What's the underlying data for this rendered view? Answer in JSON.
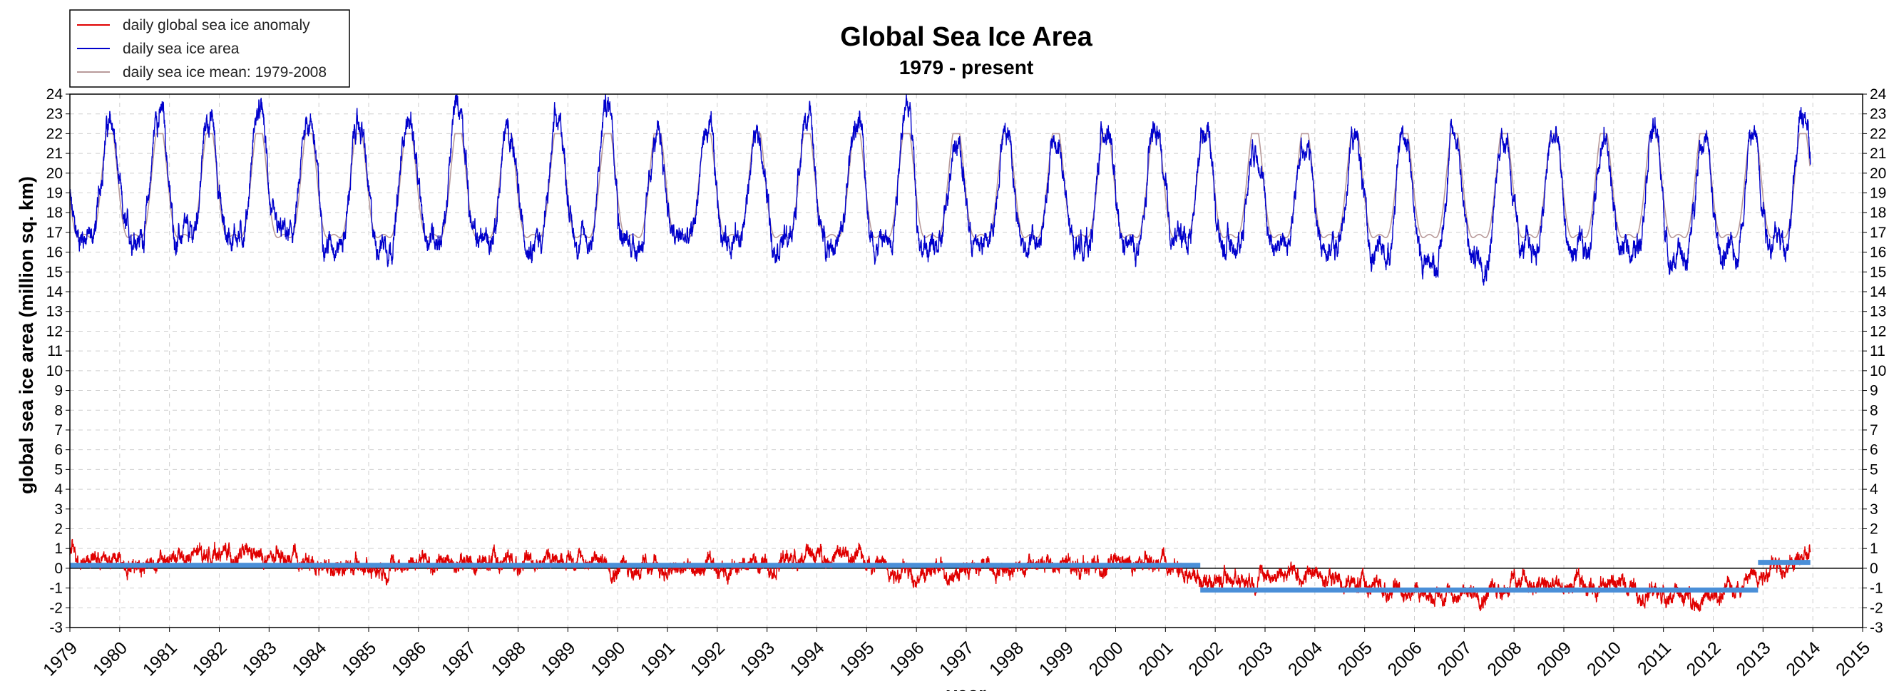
{
  "chart_data": {
    "type": "line",
    "title": "Global Sea Ice Area",
    "subtitle": "1979 - present",
    "ylabel": "global sea ice area (million sq. km)",
    "xlabel": "year",
    "xlim": [
      1979,
      2015
    ],
    "ylim": [
      -3,
      24
    ],
    "x_ticks": [
      1979,
      1980,
      1981,
      1982,
      1983,
      1984,
      1985,
      1986,
      1987,
      1988,
      1989,
      1990,
      1991,
      1992,
      1993,
      1994,
      1995,
      1996,
      1997,
      1998,
      1999,
      2000,
      2001,
      2002,
      2003,
      2004,
      2005,
      2006,
      2007,
      2008,
      2009,
      2010,
      2011,
      2012,
      2013,
      2014,
      2015
    ],
    "y_ticks": [
      -3,
      -2,
      -1,
      0,
      1,
      2,
      3,
      4,
      5,
      6,
      7,
      8,
      9,
      10,
      11,
      12,
      13,
      14,
      15,
      16,
      17,
      18,
      19,
      20,
      21,
      22,
      23,
      24
    ],
    "grid": true,
    "legend_position": "top-left",
    "legend": [
      {
        "label": "daily global sea ice anomaly",
        "color": "#e00000"
      },
      {
        "label": "daily sea ice area",
        "color": "#0000cc"
      },
      {
        "label": "daily sea ice mean: 1979-2008",
        "color": "#b89a9a"
      }
    ],
    "series": [
      {
        "name": "daily sea ice area",
        "color": "#0000cc",
        "min_annual": [
          15.9,
          15.8,
          15.7,
          15.9,
          15.8,
          15.6,
          15.5,
          15.8,
          15.7,
          15.8,
          15.5,
          15.6,
          15.7,
          15.9,
          15.6,
          15.6,
          15.4,
          15.2,
          15.4,
          15.6,
          15.4,
          15.2,
          15.8,
          15.4,
          15.6,
          15.3,
          14.9,
          14.5,
          14.7,
          15.2,
          15.0,
          15.1,
          14.6,
          14.9,
          15.6
        ],
        "max_annual": [
          22.3,
          23.0,
          22.6,
          22.9,
          22.7,
          22.3,
          22.6,
          23.3,
          22.0,
          22.3,
          23.4,
          21.5,
          22.0,
          21.7,
          22.7,
          22.4,
          23.1,
          21.7,
          22.2,
          21.5,
          22.3,
          22.0,
          22.3,
          21.4,
          21.5,
          21.7,
          21.9,
          21.9,
          21.9,
          21.7,
          21.6,
          22.1,
          21.8,
          21.8,
          22.6
        ]
      },
      {
        "name": "daily sea ice mean: 1979-2008",
        "color": "#b89a9a",
        "min": 15.9,
        "max": 22.0
      },
      {
        "name": "daily global sea ice anomaly",
        "color": "#e00000",
        "annual_mean": [
          0.8,
          0.3,
          0.4,
          0.8,
          0.4,
          0.2,
          0.1,
          0.3,
          0.3,
          0.3,
          0.6,
          0.2,
          -0.2,
          0.0,
          0.3,
          0.7,
          0.5,
          -0.3,
          0.0,
          0.2,
          0.1,
          0.1,
          0.1,
          -0.6,
          -0.3,
          -0.3,
          -0.9,
          -1.2,
          -1.3,
          -0.8,
          -1.0,
          -0.7,
          -1.3,
          -1.6,
          0.0,
          0.5
        ]
      }
    ],
    "regimes": [
      {
        "x": [
          1979.0,
          2001.7
        ],
        "y": 0.15,
        "color": "#4a8fd8"
      },
      {
        "x": [
          2001.7,
          2012.9
        ],
        "y": -1.1,
        "color": "#4a8fd8"
      },
      {
        "x": [
          2012.9,
          2013.95
        ],
        "y": 0.3,
        "color": "#4a8fd8"
      }
    ],
    "x_end": 2013.95
  }
}
